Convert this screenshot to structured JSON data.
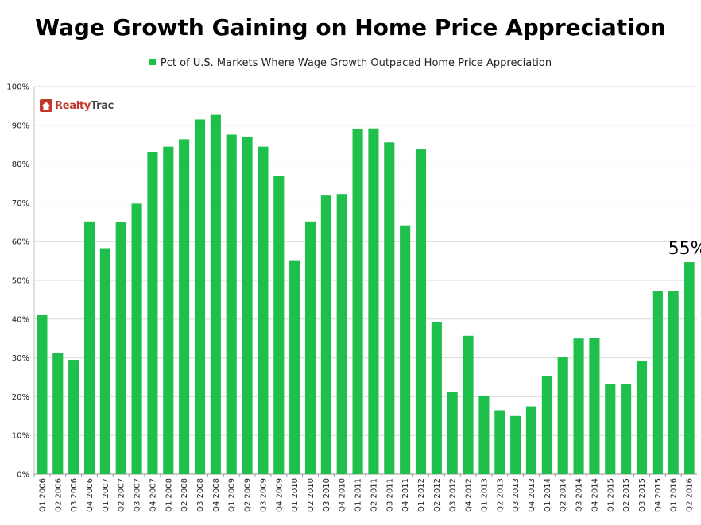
{
  "chart_data": {
    "type": "bar",
    "title": "Wage Growth Gaining on Home Price Appreciation",
    "legend": "Pct of U.S. Markets Where Wage Growth Outpaced Home Price Appreciation",
    "ylim": [
      0,
      100
    ],
    "yticks": [
      "0%",
      "10%",
      "20%",
      "30%",
      "40%",
      "50%",
      "60%",
      "70%",
      "80%",
      "90%",
      "100%"
    ],
    "grid": true,
    "legend_position": "top",
    "bar_color": "#1fbf4c",
    "categories": [
      "Q1 2006",
      "Q2 2006",
      "Q3 2006",
      "Q4 2006",
      "Q1 2007",
      "Q2 2007",
      "Q3 2007",
      "Q4 2007",
      "Q1 2008",
      "Q2 2008",
      "Q3 2008",
      "Q4 2008",
      "Q1 2009",
      "Q2 2009",
      "Q3 2009",
      "Q4 2009",
      "Q1 2010",
      "Q2 2010",
      "Q3 2010",
      "Q4 2010",
      "Q1 2011",
      "Q2 2011",
      "Q3 2011",
      "Q4 2011",
      "Q1 2012",
      "Q2 2012",
      "Q3 2012",
      "Q4 2012",
      "Q1 2013",
      "Q2 2013",
      "Q3 2013",
      "Q4 2013",
      "Q1 2014",
      "Q2 2014",
      "Q3 2014",
      "Q4 2014",
      "Q1 2015",
      "Q2 2015",
      "Q3 2015",
      "Q4 2015",
      "Q1 2016",
      "Q2 2016"
    ],
    "values": [
      41.2,
      31.2,
      29.5,
      65.2,
      58.3,
      65.1,
      69.8,
      83.0,
      84.5,
      86.4,
      91.5,
      92.7,
      87.6,
      87.1,
      84.5,
      76.9,
      55.2,
      65.2,
      71.9,
      72.3,
      89.0,
      89.2,
      85.6,
      64.2,
      83.8,
      39.3,
      21.1,
      35.7,
      20.3,
      16.5,
      15.0,
      17.5,
      25.4,
      30.2,
      35.0,
      35.1,
      23.2,
      23.3,
      29.3,
      47.2,
      47.3,
      54.7
    ],
    "annotation": {
      "text": "55%",
      "category": "Q2 2016"
    }
  },
  "logo": {
    "realty": "Realty",
    "trac": "Trac"
  }
}
